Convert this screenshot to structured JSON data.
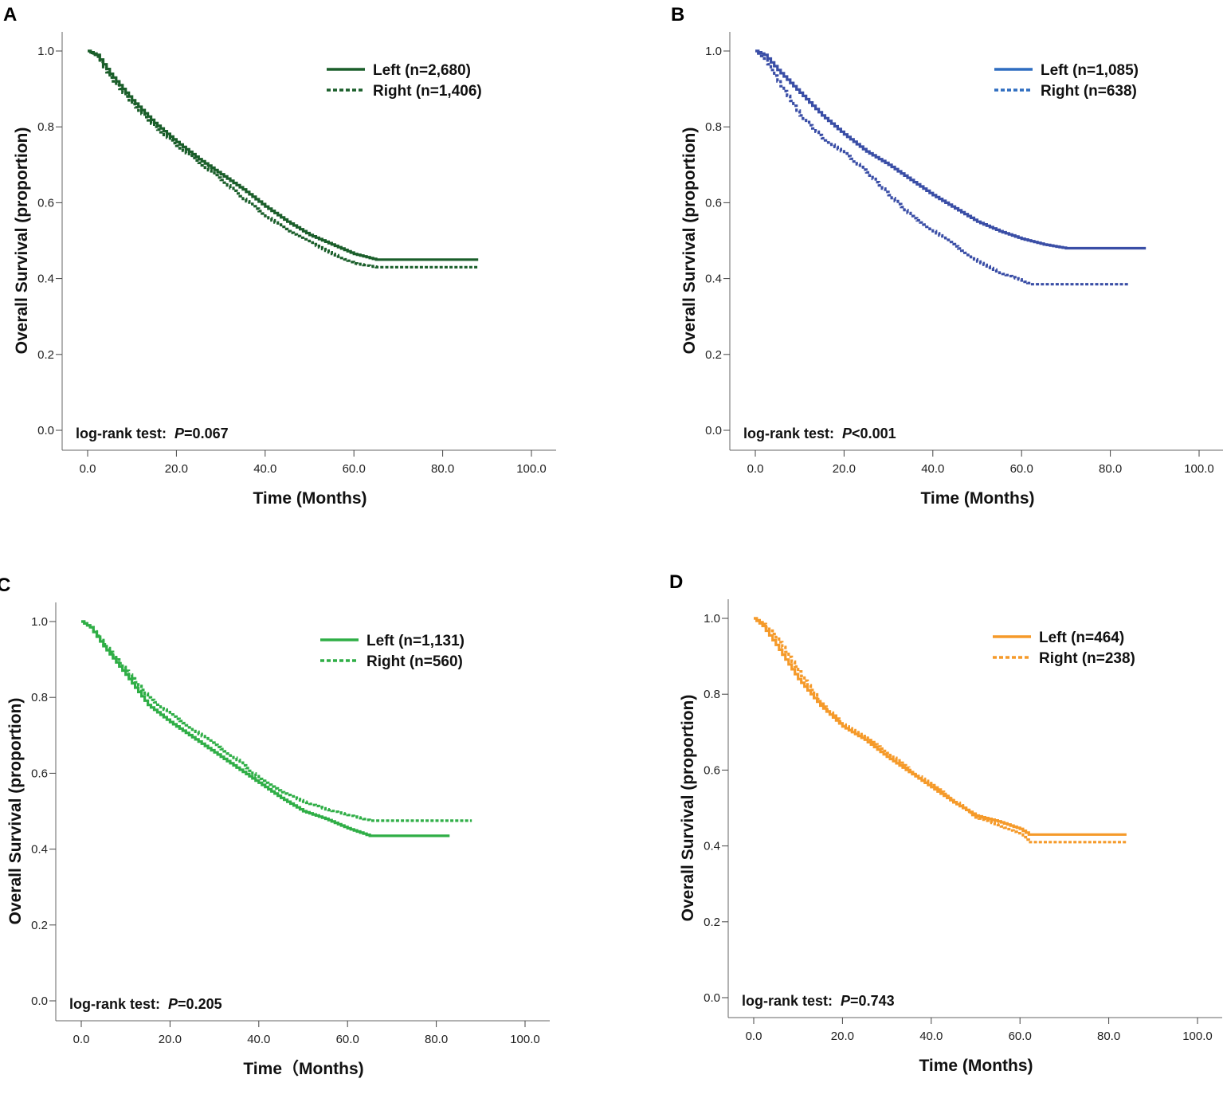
{
  "chart_data": [
    {
      "type": "line",
      "panel_label": "A",
      "xlabel": "Time (Months)",
      "ylabel": "Overall Survival (proportion)",
      "xlim": [
        0,
        100
      ],
      "ylim": [
        0,
        1
      ],
      "xticks": [
        "0.0",
        "20.0",
        "40.0",
        "60.0",
        "80.0",
        "100.0"
      ],
      "yticks": [
        "0.0",
        "0.2",
        "0.4",
        "0.6",
        "0.8",
        "1.0"
      ],
      "color": "#1a5e2a",
      "annotation": {
        "prefix": "log-rank test:",
        "p_symbol": "P",
        "p_value": "=0.067"
      },
      "series": [
        {
          "name": "Left (n=2,680)",
          "style": "solid",
          "x": [
            0,
            2,
            5,
            10,
            15,
            20,
            25,
            30,
            35,
            40,
            45,
            50,
            55,
            60,
            65,
            70,
            80,
            88
          ],
          "values": [
            1.0,
            0.99,
            0.94,
            0.87,
            0.81,
            0.76,
            0.715,
            0.675,
            0.635,
            0.59,
            0.55,
            0.515,
            0.49,
            0.465,
            0.45,
            0.45,
            0.45,
            0.45
          ]
        },
        {
          "name": "Right (n=1,406)",
          "style": "dotted",
          "x": [
            0,
            2,
            5,
            10,
            15,
            20,
            25,
            30,
            35,
            40,
            45,
            50,
            55,
            60,
            65,
            70,
            80,
            88
          ],
          "values": [
            1.0,
            0.985,
            0.93,
            0.86,
            0.8,
            0.75,
            0.705,
            0.66,
            0.61,
            0.565,
            0.525,
            0.495,
            0.465,
            0.44,
            0.43,
            0.43,
            0.43,
            0.43
          ]
        }
      ]
    },
    {
      "type": "line",
      "panel_label": "B",
      "xlabel": "Time (Months)",
      "ylabel": "Overall Survival (proportion)",
      "xlim": [
        0,
        100
      ],
      "ylim": [
        0,
        1
      ],
      "xticks": [
        "0.0",
        "20.0",
        "40.0",
        "60.0",
        "80.0",
        "100.0"
      ],
      "yticks": [
        "0.0",
        "0.2",
        "0.4",
        "0.6",
        "0.8",
        "1.0"
      ],
      "color": "#3a4ea6",
      "legend_color": "#2e6dc0",
      "annotation": {
        "prefix": "log-rank test:",
        "p_symbol": "P",
        "p_value": "<0.001"
      },
      "series": [
        {
          "name": "Left (n=1,085)",
          "style": "solid",
          "x": [
            0,
            2,
            5,
            10,
            15,
            20,
            25,
            30,
            35,
            40,
            45,
            50,
            55,
            60,
            65,
            70,
            80,
            88
          ],
          "values": [
            1.0,
            0.99,
            0.95,
            0.89,
            0.83,
            0.78,
            0.735,
            0.7,
            0.66,
            0.62,
            0.585,
            0.55,
            0.525,
            0.505,
            0.49,
            0.48,
            0.48,
            0.48
          ]
        },
        {
          "name": "Right (n=638)",
          "style": "dotted",
          "x": [
            0,
            2,
            5,
            10,
            15,
            20,
            25,
            30,
            35,
            40,
            45,
            50,
            55,
            60,
            62,
            70,
            84
          ],
          "values": [
            1.0,
            0.98,
            0.92,
            0.83,
            0.77,
            0.73,
            0.68,
            0.62,
            0.565,
            0.525,
            0.485,
            0.445,
            0.415,
            0.395,
            0.385,
            0.385,
            0.385
          ]
        }
      ]
    },
    {
      "type": "line",
      "panel_label": "C",
      "xlabel": "Time（Months)",
      "ylabel": "Overall Survival (proportion)",
      "xlim": [
        0,
        100
      ],
      "ylim": [
        0,
        1
      ],
      "xticks": [
        "0.0",
        "20.0",
        "40.0",
        "60.0",
        "80.0",
        "100.0"
      ],
      "yticks": [
        "0.0",
        "0.2",
        "0.4",
        "0.6",
        "0.8",
        "1.0"
      ],
      "color": "#2fae46",
      "annotation": {
        "prefix": "log-rank test:",
        "p_symbol": "P",
        "p_value": "=0.205"
      },
      "series": [
        {
          "name": "Left (n=1,131)",
          "style": "solid",
          "x": [
            0,
            2,
            5,
            10,
            15,
            20,
            25,
            30,
            35,
            40,
            45,
            50,
            55,
            60,
            65,
            70,
            83
          ],
          "values": [
            1.0,
            0.985,
            0.935,
            0.86,
            0.78,
            0.735,
            0.695,
            0.655,
            0.615,
            0.575,
            0.535,
            0.5,
            0.48,
            0.455,
            0.435,
            0.435,
            0.435
          ]
        },
        {
          "name": "Right (n=560)",
          "style": "dotted",
          "x": [
            0,
            2,
            5,
            10,
            15,
            20,
            25,
            30,
            35,
            40,
            45,
            50,
            55,
            60,
            65,
            70,
            80,
            88
          ],
          "values": [
            1.0,
            0.985,
            0.94,
            0.87,
            0.8,
            0.755,
            0.715,
            0.675,
            0.635,
            0.585,
            0.55,
            0.525,
            0.505,
            0.49,
            0.475,
            0.475,
            0.475,
            0.475
          ]
        }
      ]
    },
    {
      "type": "line",
      "panel_label": "D",
      "xlabel": "Time (Months)",
      "ylabel": "Overall Survival (proportion)",
      "xlim": [
        0,
        100
      ],
      "ylim": [
        0,
        1
      ],
      "xticks": [
        "0.0",
        "20.0",
        "40.0",
        "60.0",
        "80.0",
        "100.0"
      ],
      "yticks": [
        "0.0",
        "0.2",
        "0.4",
        "0.6",
        "0.8",
        "1.0"
      ],
      "color": "#f59a2a",
      "annotation": {
        "prefix": "log-rank test:",
        "p_symbol": "P",
        "p_value": "=0.743"
      },
      "series": [
        {
          "name": "Left (n=464)",
          "style": "solid",
          "x": [
            0,
            2,
            5,
            10,
            15,
            20,
            25,
            30,
            35,
            40,
            45,
            50,
            55,
            60,
            62,
            70,
            84
          ],
          "values": [
            1.0,
            0.98,
            0.93,
            0.84,
            0.77,
            0.715,
            0.68,
            0.635,
            0.595,
            0.555,
            0.515,
            0.48,
            0.465,
            0.445,
            0.43,
            0.43,
            0.43
          ]
        },
        {
          "name": "Right (n=238)",
          "style": "dotted",
          "x": [
            0,
            2,
            5,
            10,
            15,
            20,
            25,
            30,
            35,
            40,
            45,
            50,
            55,
            60,
            62,
            70,
            84
          ],
          "values": [
            1.0,
            0.985,
            0.95,
            0.86,
            0.775,
            0.72,
            0.685,
            0.645,
            0.6,
            0.56,
            0.52,
            0.475,
            0.455,
            0.43,
            0.41,
            0.41,
            0.41
          ]
        }
      ]
    }
  ]
}
